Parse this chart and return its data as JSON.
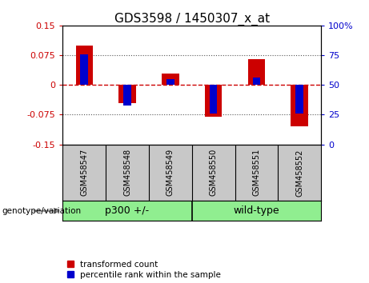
{
  "title": "GDS3598 / 1450307_x_at",
  "samples": [
    "GSM458547",
    "GSM458548",
    "GSM458549",
    "GSM458550",
    "GSM458551",
    "GSM458552"
  ],
  "transformed_counts": [
    0.1,
    -0.045,
    0.028,
    -0.08,
    0.065,
    -0.105
  ],
  "percentile_ranks": [
    0.078,
    -0.052,
    0.015,
    -0.072,
    0.018,
    -0.072
  ],
  "ylim_left": [
    -0.15,
    0.15
  ],
  "yticks_left": [
    -0.15,
    -0.075,
    0,
    0.075,
    0.15
  ],
  "yticks_right": [
    0,
    25,
    50,
    75,
    100
  ],
  "ylim_right": [
    0,
    100
  ],
  "group_labels": [
    "p300 +/-",
    "wild-type"
  ],
  "group_boundary": 2.5,
  "bar_color_red": "#CC0000",
  "bar_color_blue": "#0000CC",
  "bar_width": 0.4,
  "percentile_bar_width": 0.18,
  "zero_line_color": "#CC0000",
  "dotted_line_color": "#555555",
  "background_label": "#c8c8c8",
  "background_group": "#90EE90",
  "label_fontsize": 7,
  "title_fontsize": 11,
  "legend_fontsize": 7.5,
  "axis_label_color_left": "#CC0000",
  "axis_label_color_right": "#0000CC",
  "genotype_label": "genotype/variation"
}
